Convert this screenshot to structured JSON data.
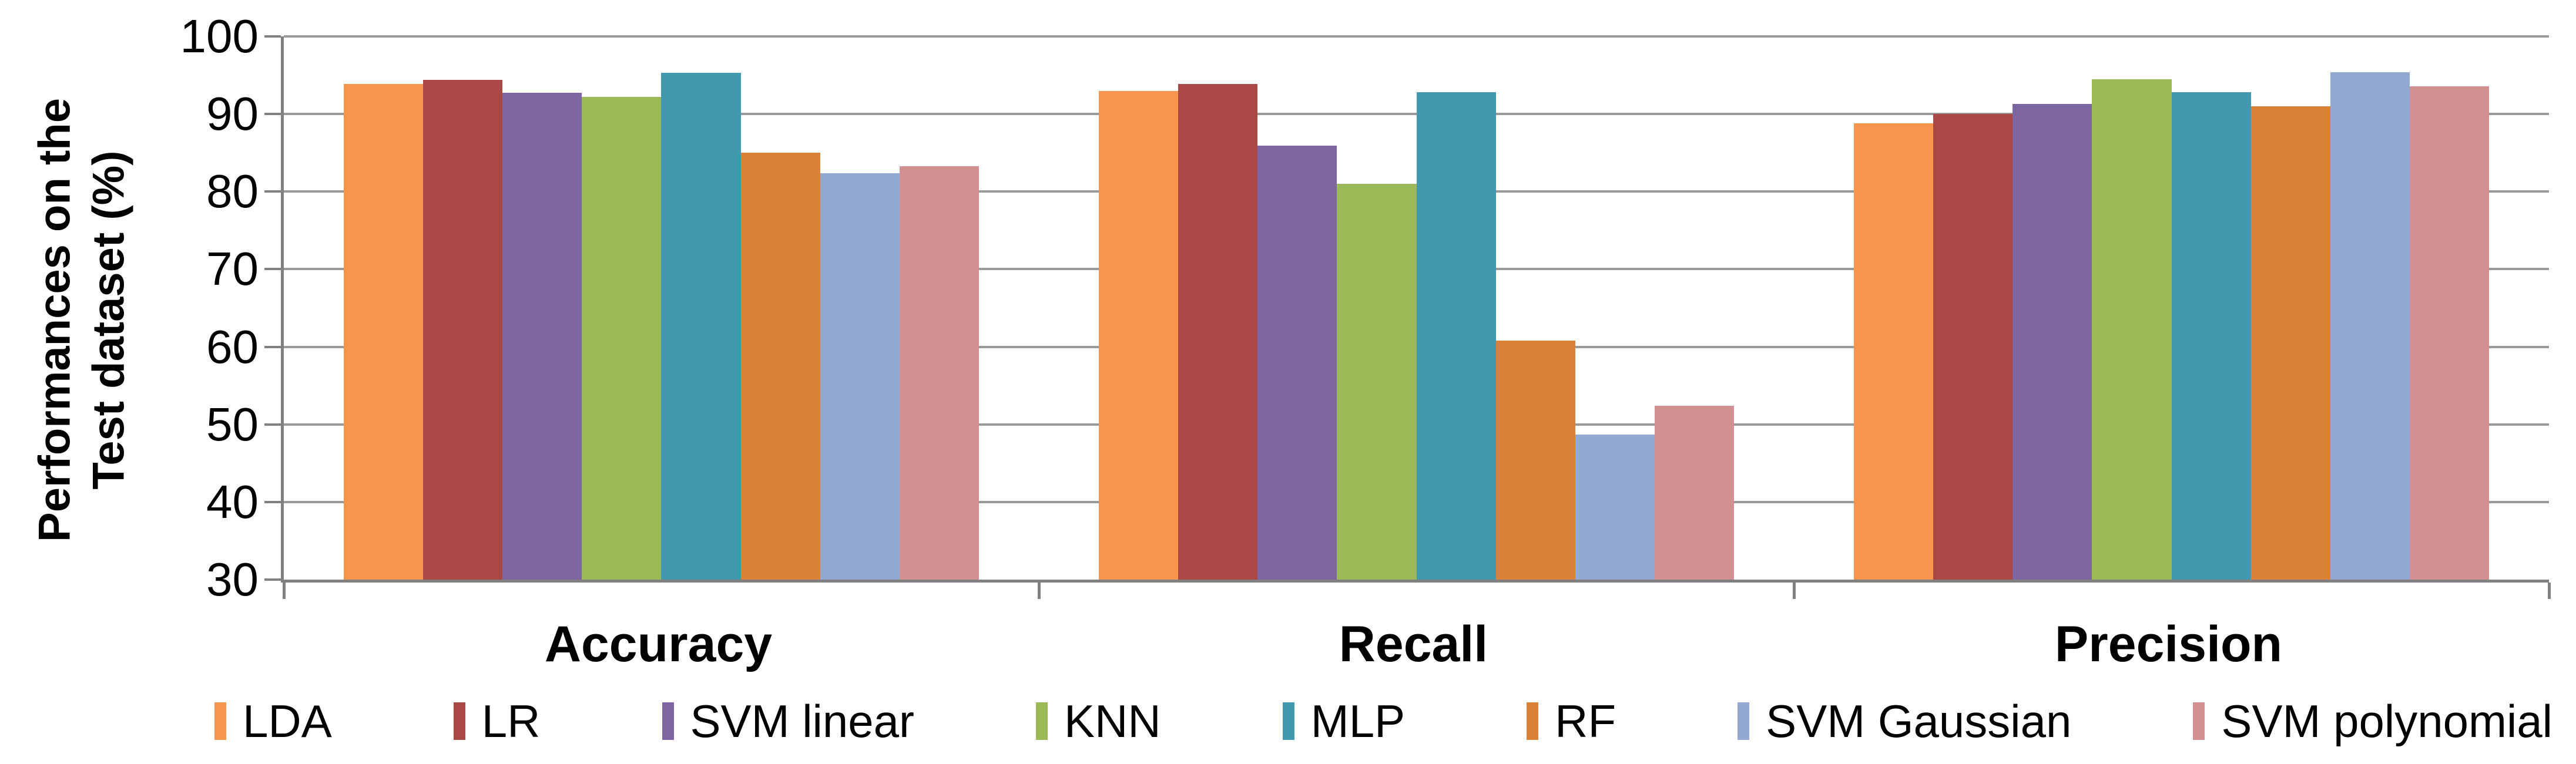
{
  "y_axis": {
    "title_line1": "Performances on the",
    "title_line2": "Test dataset (%)",
    "tick_labels": [
      "100",
      "90",
      "80",
      "70",
      "60",
      "50",
      "40",
      "30"
    ],
    "min": 30,
    "max": 100,
    "step": 10
  },
  "chart_data": {
    "type": "bar",
    "categories": [
      "Accuracy",
      "Recall",
      "Precision"
    ],
    "series": [
      {
        "name": "LDA",
        "color": "#F6954B",
        "values": [
          93.9,
          93.0,
          88.8
        ]
      },
      {
        "name": "LR",
        "color": "#A94845",
        "values": [
          94.4,
          93.9,
          90.0
        ]
      },
      {
        "name": "SVM linear",
        "color": "#7D66A1",
        "values": [
          92.7,
          85.9,
          91.3
        ]
      },
      {
        "name": "KNN",
        "color": "#9ABA57",
        "values": [
          92.2,
          81.0,
          94.5
        ]
      },
      {
        "name": "MLP",
        "color": "#4298AE",
        "values": [
          95.3,
          92.8,
          92.8
        ]
      },
      {
        "name": "RF",
        "color": "#DB8138",
        "values": [
          85.0,
          60.8,
          91.0
        ]
      },
      {
        "name": "SVM Gaussian",
        "color": "#93A9D1",
        "values": [
          82.4,
          48.7,
          95.4
        ]
      },
      {
        "name": "SVM polynomial",
        "color": "#D29092",
        "values": [
          83.3,
          52.4,
          93.6
        ]
      }
    ],
    "ylabel": "Performances on the Test dataset (%)",
    "ylim": [
      30,
      100
    ],
    "grid": true,
    "legend_position": "bottom"
  },
  "style_colors": {
    "gridline": "#9A9A9A",
    "axis": "#808080",
    "text": "#000000"
  }
}
